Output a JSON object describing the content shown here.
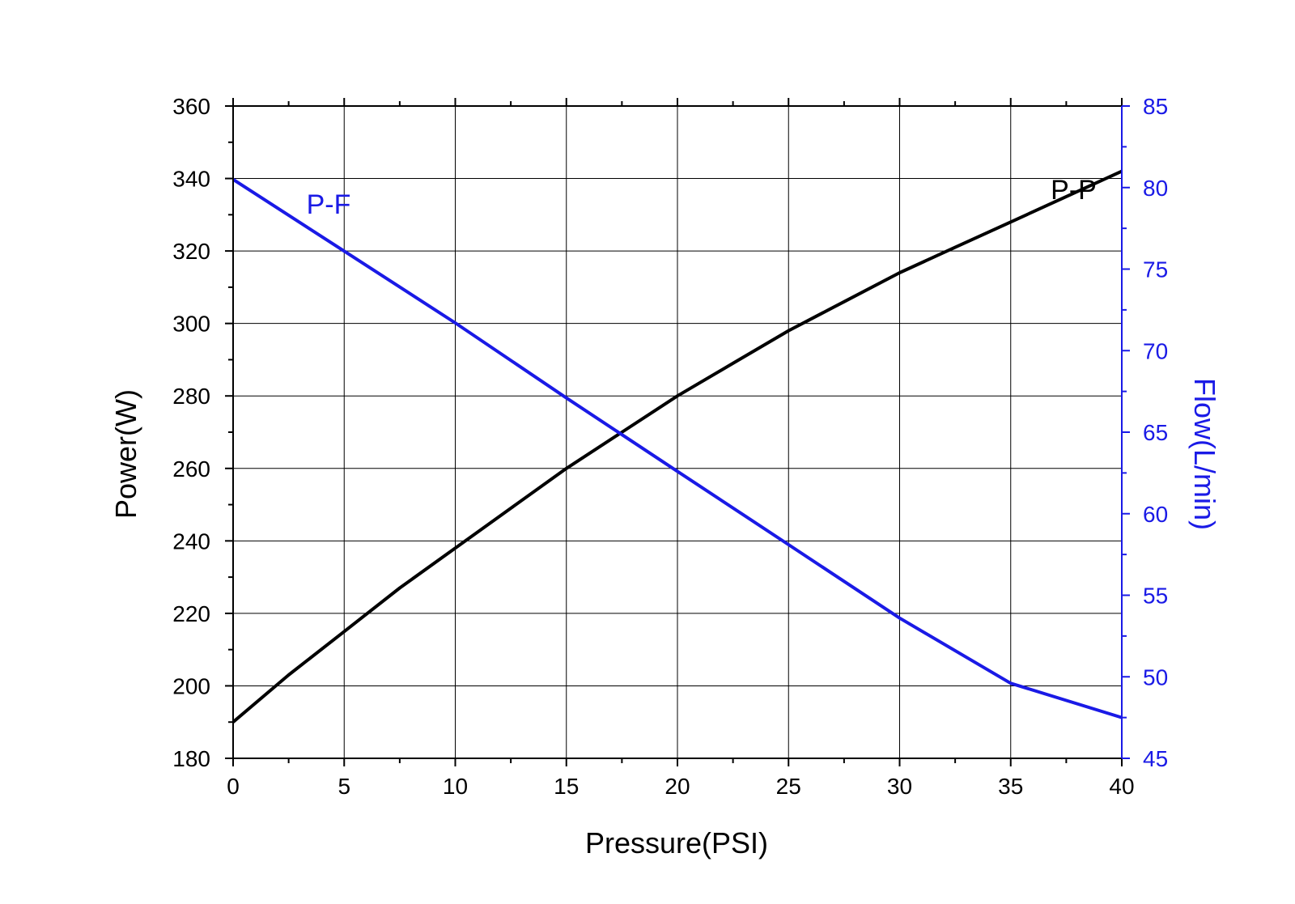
{
  "chart_data": {
    "type": "line",
    "xlabel": "Pressure(PSI)",
    "ylabel_left": "Power(W)",
    "ylabel_right": "Flow(L/min)",
    "xlim": [
      0,
      40
    ],
    "ylim_left": [
      180,
      360
    ],
    "ylim_right": [
      45,
      85
    ],
    "x_ticks": [
      0,
      5,
      10,
      15,
      20,
      25,
      30,
      35,
      40
    ],
    "y_left_ticks": [
      180,
      200,
      220,
      240,
      260,
      280,
      300,
      320,
      340,
      360
    ],
    "y_right_ticks": [
      45,
      50,
      55,
      60,
      65,
      70,
      75,
      80,
      85
    ],
    "grid": true,
    "colors": {
      "axis_left": "#000000",
      "axis_right": "#1a1ae6",
      "grid": "#000000"
    },
    "series": [
      {
        "name": "P-P",
        "axis": "left",
        "color": "#000000",
        "x": [
          0,
          2.5,
          5,
          7.5,
          10,
          12.5,
          15,
          17.5,
          20,
          22.5,
          25,
          27.5,
          30,
          32.5,
          35,
          37.5,
          40
        ],
        "y": [
          190,
          203,
          215,
          227,
          238,
          249,
          260,
          270,
          280,
          289,
          298,
          306,
          314,
          321,
          328,
          335,
          342
        ]
      },
      {
        "name": "P-F",
        "axis": "right",
        "color": "#1a1ae6",
        "x": [
          0,
          5,
          10,
          15,
          20,
          25,
          30,
          35,
          40
        ],
        "y": [
          80.5,
          76.1,
          71.7,
          67.1,
          62.6,
          58.1,
          53.6,
          49.6,
          47.5
        ]
      }
    ],
    "annotations": [
      {
        "text": "P-P",
        "series": "P-P",
        "at_x": 36.8,
        "at_y_left": 337
      },
      {
        "text": "P-F",
        "series": "P-F",
        "at_x": 3.3,
        "at_y_left": 333
      }
    ]
  }
}
